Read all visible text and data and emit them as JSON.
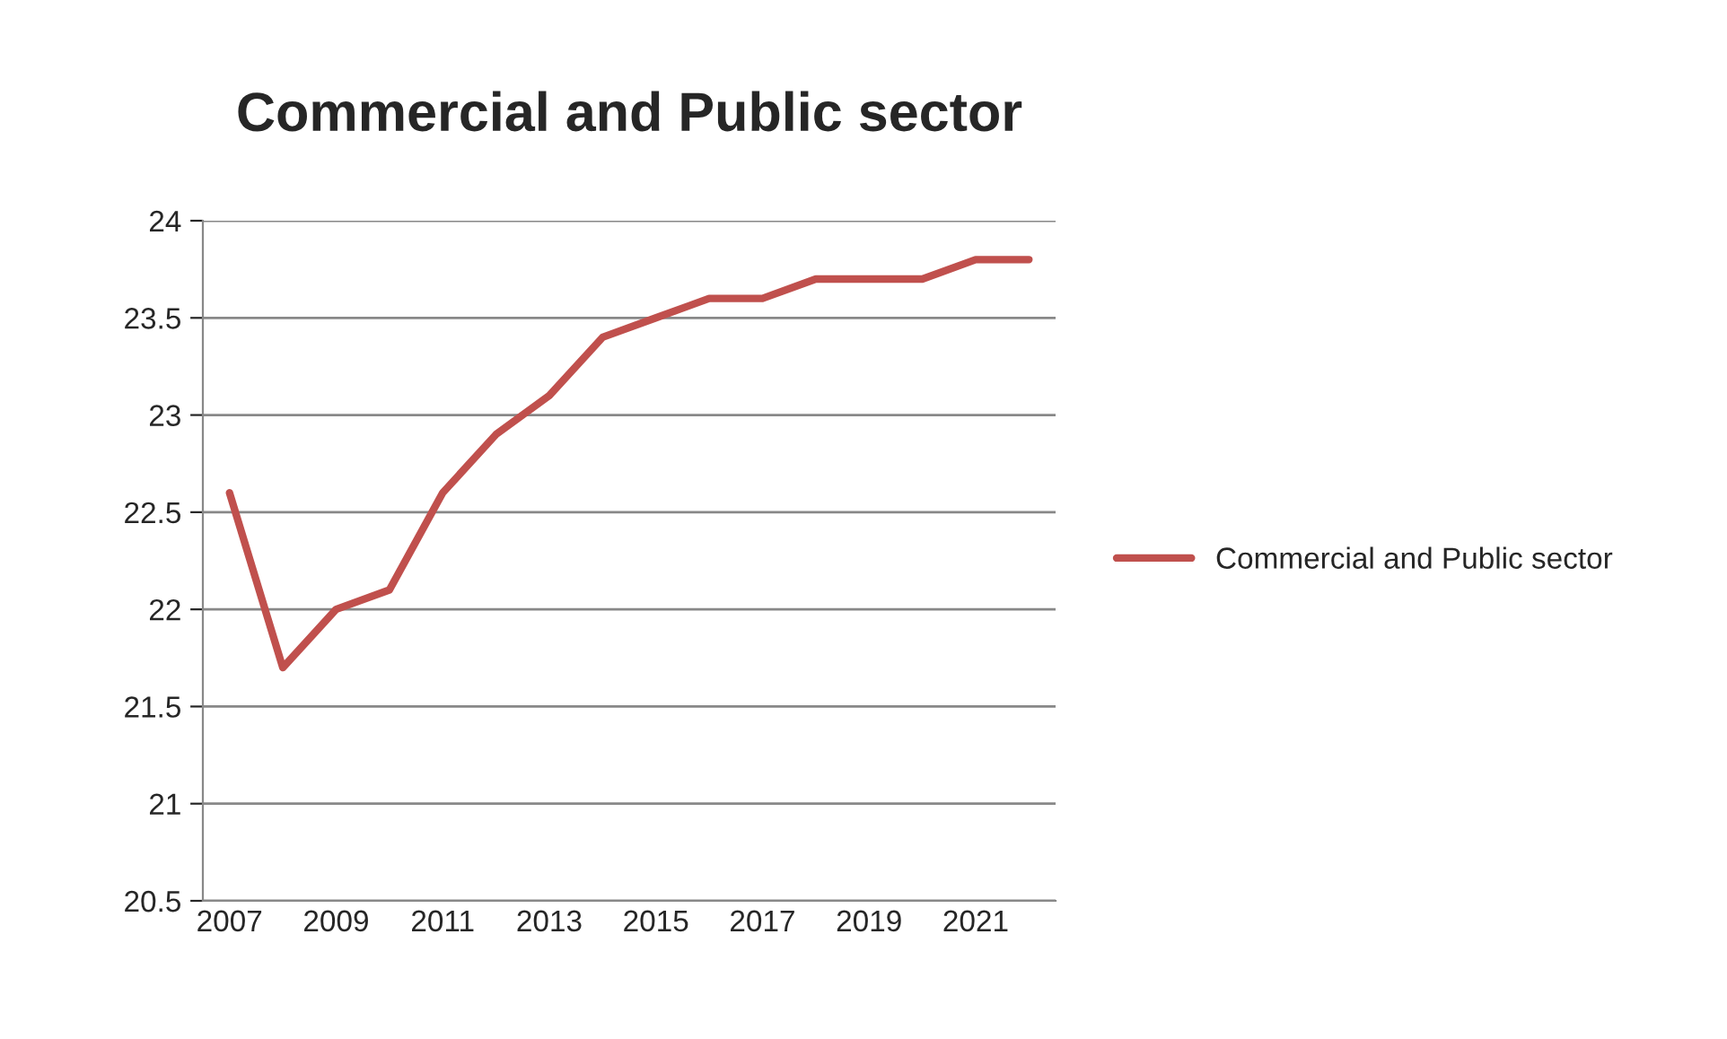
{
  "chart_data": {
    "type": "line",
    "title": "Commercial and Public sector",
    "categories": [
      "2007",
      null,
      "2009",
      null,
      "2011",
      null,
      "2013",
      null,
      "2015",
      null,
      "2017",
      null,
      "2019",
      null,
      "2021",
      null
    ],
    "series": [
      {
        "name": "Commercial and Public sector",
        "color": "#c0504d",
        "values": [
          22.6,
          21.7,
          22.0,
          22.1,
          22.6,
          22.9,
          23.1,
          23.4,
          23.5,
          23.6,
          23.6,
          23.7,
          23.7,
          23.7,
          23.8,
          23.8
        ]
      }
    ],
    "ylim": [
      20.5,
      24
    ],
    "yticks": [
      20.5,
      21,
      21.5,
      22,
      22.5,
      23,
      23.5,
      24
    ],
    "grid": "y",
    "legend": "right",
    "marker": "none",
    "line_style": "solid"
  }
}
